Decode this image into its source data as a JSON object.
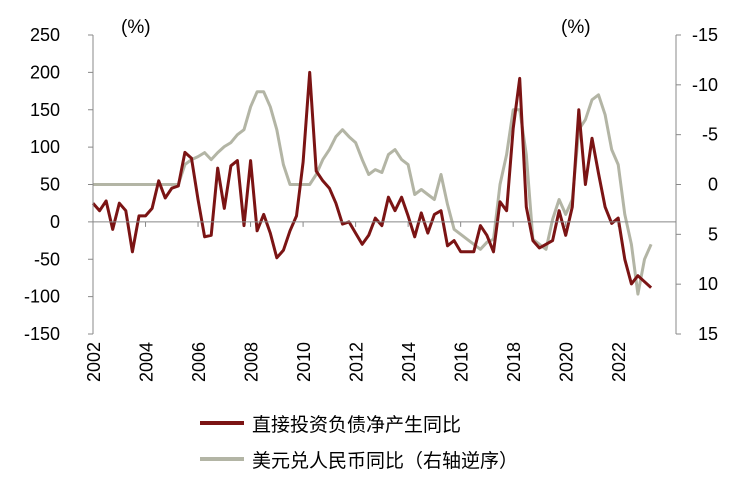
{
  "chart_data": {
    "type": "line",
    "left_axis": {
      "unit_label": "(%)",
      "ylim": [
        -150,
        250
      ],
      "ticks": [
        250,
        200,
        150,
        100,
        50,
        0,
        -50,
        -100,
        -150
      ]
    },
    "right_axis": {
      "unit_label": "(%)",
      "inverted": true,
      "ylim": [
        -15,
        15
      ],
      "ticks": [
        -15,
        -10,
        -5,
        0,
        5,
        10,
        15
      ]
    },
    "x_axis": {
      "range": [
        2002,
        2024.2
      ],
      "tick_labels": [
        "2002",
        "2004",
        "2006",
        "2008",
        "2010",
        "2012",
        "2014",
        "2016",
        "2018",
        "2020",
        "2022"
      ]
    },
    "series": [
      {
        "name": "直接投资负债净产生同比",
        "axis": "left",
        "color": "#7b1414",
        "x": [
          2002.0,
          2002.25,
          2002.5,
          2002.75,
          2003.0,
          2003.25,
          2003.5,
          2003.75,
          2004.0,
          2004.25,
          2004.5,
          2004.75,
          2005.0,
          2005.25,
          2005.5,
          2005.75,
          2006.0,
          2006.25,
          2006.5,
          2006.75,
          2007.0,
          2007.25,
          2007.5,
          2007.75,
          2008.0,
          2008.25,
          2008.5,
          2008.75,
          2009.0,
          2009.25,
          2009.5,
          2009.75,
          2010.0,
          2010.25,
          2010.5,
          2010.75,
          2011.0,
          2011.25,
          2011.5,
          2011.75,
          2012.0,
          2012.25,
          2012.5,
          2012.75,
          2013.0,
          2013.25,
          2013.5,
          2013.75,
          2014.0,
          2014.25,
          2014.5,
          2014.75,
          2015.0,
          2015.25,
          2015.5,
          2015.75,
          2016.0,
          2016.25,
          2016.5,
          2016.75,
          2017.0,
          2017.25,
          2017.5,
          2017.75,
          2018.0,
          2018.25,
          2018.5,
          2018.75,
          2019.0,
          2019.25,
          2019.5,
          2019.75,
          2020.0,
          2020.25,
          2020.5,
          2020.75,
          2021.0,
          2021.25,
          2021.5,
          2021.75,
          2022.0,
          2022.25,
          2022.5,
          2022.75,
          2023.0,
          2023.25
        ],
        "values": [
          25,
          15,
          28,
          -10,
          25,
          15,
          -40,
          8,
          8,
          18,
          55,
          32,
          45,
          48,
          93,
          85,
          30,
          -20,
          -18,
          72,
          18,
          75,
          82,
          -5,
          82,
          -12,
          10,
          -15,
          -48,
          -38,
          -12,
          8,
          80,
          200,
          68,
          55,
          45,
          25,
          -3,
          0,
          -15,
          -30,
          -18,
          5,
          -5,
          33,
          15,
          33,
          8,
          -20,
          12,
          -15,
          10,
          15,
          -32,
          -25,
          -40,
          -40,
          -40,
          -5,
          -18,
          -40,
          27,
          15,
          125,
          192,
          20,
          -25,
          -35,
          -30,
          -25,
          15,
          -18,
          20,
          150,
          50,
          112,
          65,
          20,
          -2,
          5,
          -50,
          -83,
          -72,
          -80,
          -88
        ]
      },
      {
        "name": "美元兑人民币同比（右轴逆序）",
        "axis": "right",
        "color": "#b3b5a5",
        "x": [
          2002.0,
          2002.25,
          2002.5,
          2002.75,
          2003.0,
          2003.25,
          2003.5,
          2003.75,
          2004.0,
          2004.25,
          2004.5,
          2004.75,
          2005.0,
          2005.25,
          2005.5,
          2005.75,
          2006.0,
          2006.25,
          2006.5,
          2006.75,
          2007.0,
          2007.25,
          2007.5,
          2007.75,
          2008.0,
          2008.25,
          2008.5,
          2008.75,
          2009.0,
          2009.25,
          2009.5,
          2009.75,
          2010.0,
          2010.25,
          2010.5,
          2010.75,
          2011.0,
          2011.25,
          2011.5,
          2011.75,
          2012.0,
          2012.25,
          2012.5,
          2012.75,
          2013.0,
          2013.25,
          2013.5,
          2013.75,
          2014.0,
          2014.25,
          2014.5,
          2014.75,
          2015.0,
          2015.25,
          2015.5,
          2015.75,
          2016.0,
          2016.25,
          2016.5,
          2016.75,
          2017.0,
          2017.25,
          2017.5,
          2017.75,
          2018.0,
          2018.25,
          2018.5,
          2018.75,
          2019.0,
          2019.25,
          2019.5,
          2019.75,
          2020.0,
          2020.25,
          2020.5,
          2020.75,
          2021.0,
          2021.25,
          2021.5,
          2021.75,
          2022.0,
          2022.25,
          2022.5,
          2022.75,
          2023.0,
          2023.25
        ],
        "values": [
          0,
          0,
          0,
          0,
          0,
          0,
          0,
          0,
          0,
          0,
          0,
          0,
          0,
          0,
          -2,
          -2.5,
          -2.8,
          -3.2,
          -2.5,
          -3.2,
          -3.8,
          -4.2,
          -5.0,
          -5.5,
          -7.8,
          -9.3,
          -9.3,
          -7.8,
          -5.5,
          -2,
          0,
          0,
          0,
          0,
          -1,
          -2.5,
          -3.5,
          -4.8,
          -5.5,
          -4.8,
          -4.2,
          -2.5,
          -1,
          -1.5,
          -1.2,
          -3,
          -3.5,
          -2.5,
          -2,
          1,
          0.5,
          1,
          1.5,
          -1,
          2,
          4.5,
          5,
          5.5,
          6,
          6.5,
          5.8,
          5.5,
          0,
          -3,
          -7.5,
          -7.5,
          -3,
          5.5,
          6,
          6.5,
          3.5,
          1.5,
          3,
          1.5,
          -5.5,
          -6.5,
          -8.5,
          -9,
          -7,
          -3.5,
          -2,
          3,
          6,
          11,
          7.5,
          6
        ]
      }
    ]
  }
}
